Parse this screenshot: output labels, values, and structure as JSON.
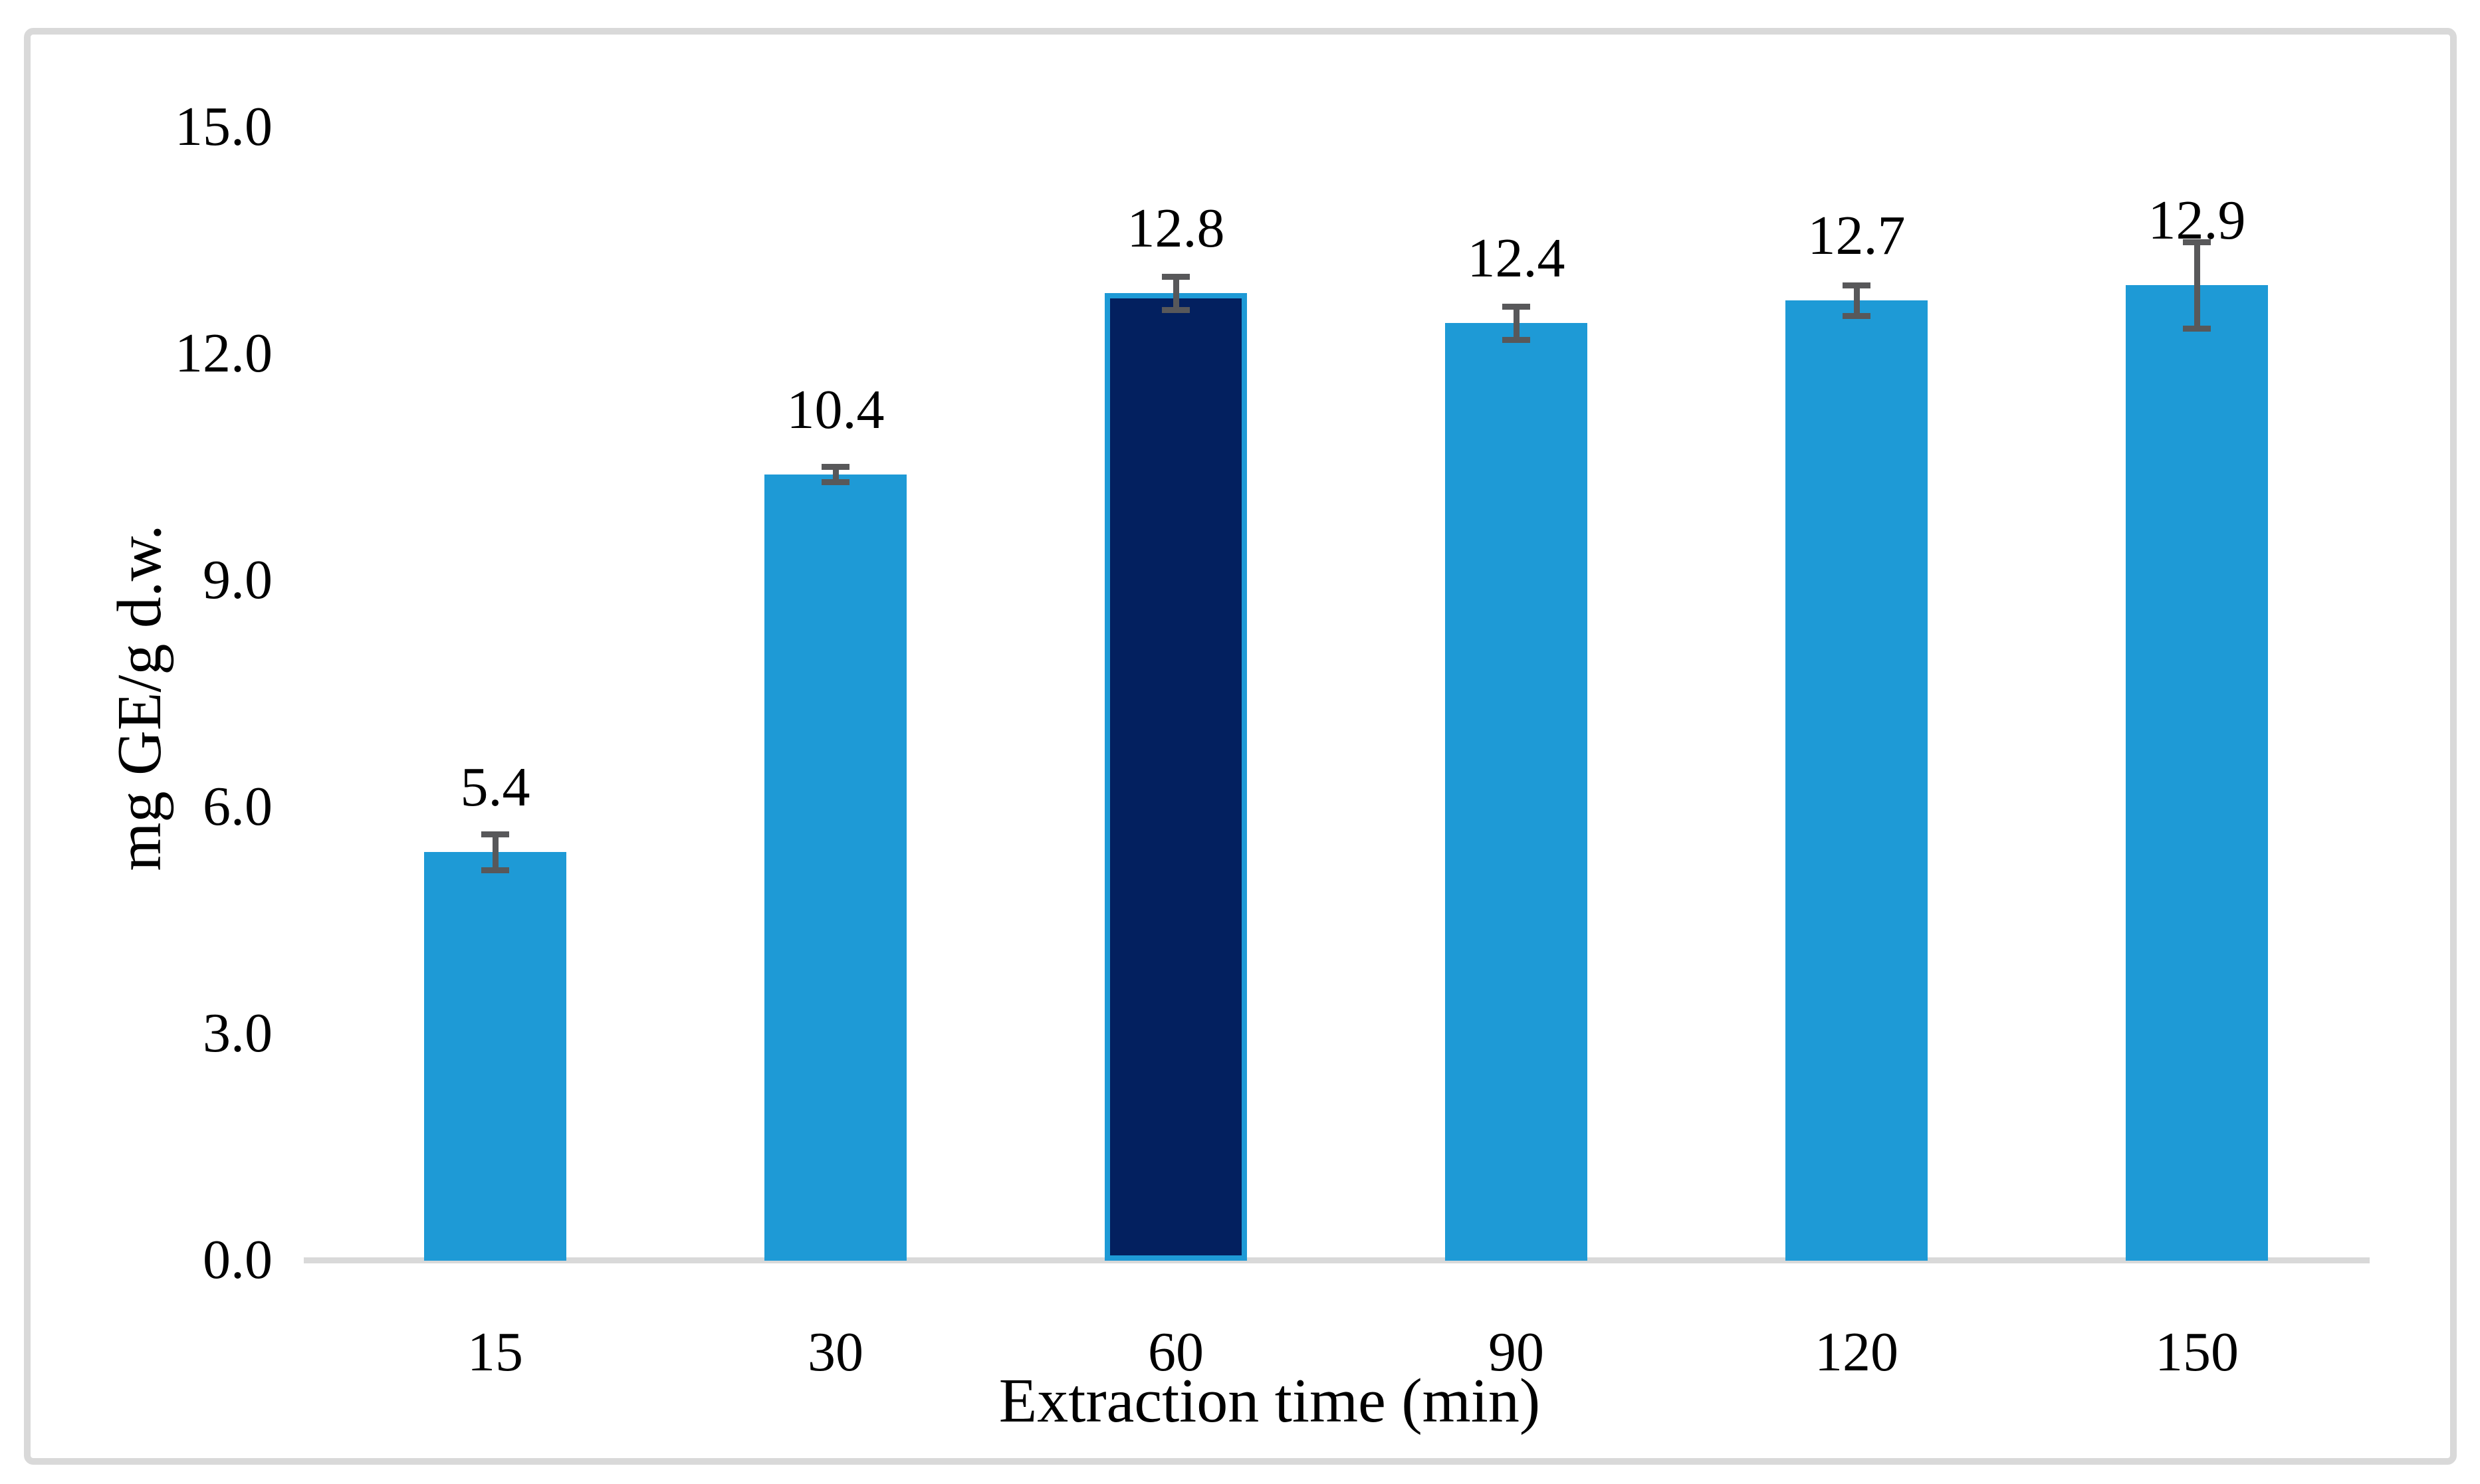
{
  "figure": {
    "background_color": "#ffffff",
    "frame_color": "#d9d9d9"
  },
  "chart_data": {
    "type": "bar",
    "title": "",
    "xlabel": "Extraction time (min)",
    "ylabel": "mg GE/g d.w.",
    "categories": [
      "15",
      "30",
      "60",
      "90",
      "120",
      "150"
    ],
    "values": [
      5.4,
      10.4,
      12.8,
      12.4,
      12.7,
      12.9
    ],
    "value_labels": [
      "5.4",
      "10.4",
      "12.8",
      "12.4",
      "12.7",
      "12.9"
    ],
    "error_bars": [
      0.24,
      0.1,
      0.22,
      0.22,
      0.2,
      0.57
    ],
    "highlighted_index": 2,
    "ylim": [
      0,
      15
    ],
    "ytick_labels": [
      "0.0",
      "3.0",
      "6.0",
      "9.0",
      "12.0",
      "15.0"
    ],
    "ytick_values": [
      0,
      3,
      6,
      9,
      12,
      15
    ],
    "grid": false,
    "legend": null,
    "colors": {
      "bar_fill": "#1e9ad6",
      "highlight_fill": "#03205f",
      "highlight_outline": "#1e9ad6",
      "error_bar": "#58585a",
      "axis_line": "#d9d9d9",
      "text": "#000000"
    }
  }
}
